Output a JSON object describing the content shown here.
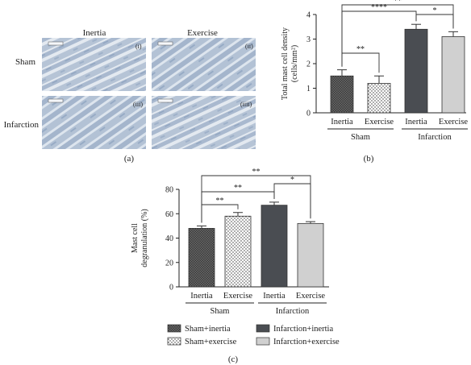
{
  "micrographs": {
    "col_labels": [
      "Inertia",
      "Exercise"
    ],
    "row_labels": [
      "Sham",
      "Infarction"
    ],
    "panel_tags": [
      "(i)",
      "(ii)",
      "(iii)",
      "(iiii)"
    ],
    "panel_label": "(a)"
  },
  "chart_b": {
    "panel_label": "(b)",
    "ylabel_lines": [
      "Total mast cell density",
      "(cells/mm²)"
    ],
    "yticks": [
      "0",
      "1",
      "2",
      "3",
      "4"
    ],
    "ylim": [
      0,
      4
    ],
    "bar_labels": [
      "Inertia",
      "Exercise",
      "Inertia",
      "Exercise"
    ],
    "group_labels": [
      "Sham",
      "Infarction"
    ],
    "significance": [
      {
        "from": 0,
        "to": 1,
        "text": "**"
      },
      {
        "from": 2,
        "to": 3,
        "text": "*"
      },
      {
        "from": 0,
        "to": 2,
        "text": "****"
      },
      {
        "from": 0,
        "to": 3,
        "text": "**"
      }
    ]
  },
  "chart_c": {
    "panel_label": "(c)",
    "ylabel_lines": [
      "Mast cell",
      "degranulation (%)"
    ],
    "yticks": [
      "0",
      "20",
      "40",
      "60",
      "80"
    ],
    "ylim": [
      0,
      80
    ],
    "bar_labels": [
      "Inertia",
      "Exercise",
      "Inertia",
      "Exercise"
    ],
    "group_labels": [
      "Sham",
      "Infarction"
    ],
    "significance": [
      {
        "from": 0,
        "to": 1,
        "text": "**"
      },
      {
        "from": 2,
        "to": 3,
        "text": "*"
      },
      {
        "from": 0,
        "to": 2,
        "text": "**"
      },
      {
        "from": 0,
        "to": 3,
        "text": "**"
      }
    ]
  },
  "legend": [
    {
      "label": "Sham+inertia",
      "pattern": "sham-inertia"
    },
    {
      "label": "Infarction+inertia",
      "pattern": "infarction-inertia"
    },
    {
      "label": "Sham+exercise",
      "pattern": "sham-exercise"
    },
    {
      "label": "Infarction+exercise",
      "pattern": "infarction-exercise"
    }
  ],
  "colors": {
    "sham_inertia": "#5a5a5a",
    "sham_exercise": "#ffffff",
    "infarction_inertia": "#4a4d52",
    "infarction_exercise": "#d0d0d0",
    "tissue": "#b9c6d6",
    "tissue_bg": "#dfe6ee"
  },
  "chart_data": [
    {
      "type": "bar",
      "categories": [
        "Sham Inertia",
        "Sham Exercise",
        "Infarction Inertia",
        "Infarction Exercise"
      ],
      "values": [
        1.5,
        1.2,
        3.4,
        3.1
      ],
      "errors": [
        0.25,
        0.3,
        0.2,
        0.2
      ],
      "xlabel": "",
      "ylabel": "Total mast cell density (cells/mm²)",
      "ylim": [
        0,
        4
      ]
    },
    {
      "type": "bar",
      "categories": [
        "Sham Inertia",
        "Sham Exercise",
        "Infarction Inertia",
        "Infarction Exercise"
      ],
      "values": [
        48,
        58,
        67,
        52
      ],
      "errors": [
        2,
        3,
        2.5,
        1.5
      ],
      "xlabel": "",
      "ylabel": "Mast cell degranulation (%)",
      "ylim": [
        0,
        80
      ]
    }
  ]
}
